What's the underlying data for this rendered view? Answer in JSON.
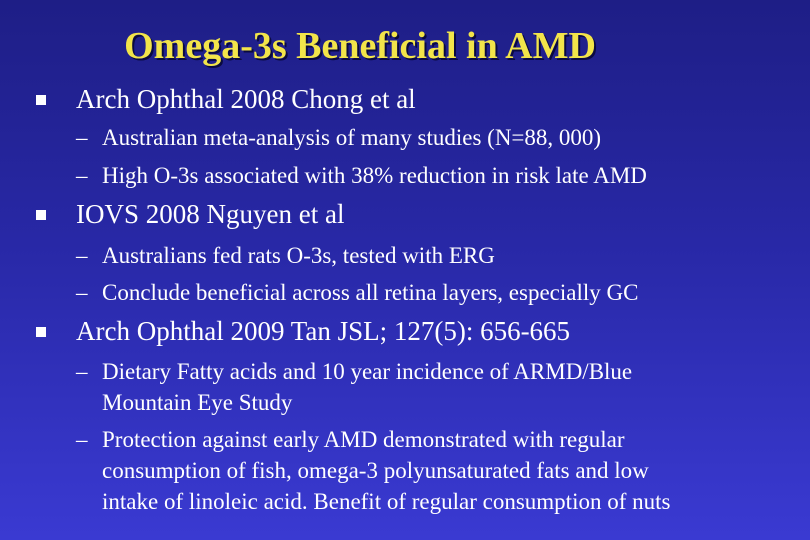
{
  "slide": {
    "title": "Omega-3s Beneficial in AMD",
    "bullets": [
      {
        "text": "Arch Ophthal 2008 Chong et al",
        "subs": [
          {
            "lines": [
              "Australian meta-analysis of many studies (N=88, 000)"
            ]
          },
          {
            "lines": [
              "High O-3s associated with 38% reduction in risk late AMD"
            ]
          }
        ]
      },
      {
        "text": "IOVS 2008 Nguyen et al",
        "subs": [
          {
            "lines": [
              "Australians fed rats O-3s, tested with ERG"
            ]
          },
          {
            "lines": [
              "Conclude beneficial across all retina layers, especially GC"
            ]
          }
        ]
      },
      {
        "text": "Arch Ophthal 2009 Tan JSL; 127(5): 656-665",
        "subs": [
          {
            "lines": [
              "Dietary Fatty acids and 10 year incidence of ARMD/Blue",
              "Mountain Eye Study"
            ]
          },
          {
            "lines": [
              "Protection against early AMD demonstrated with regular",
              "consumption of fish, omega-3 polyunsaturated fats and low",
              "intake of linoleic acid. Benefit of regular consumption of nuts"
            ]
          }
        ]
      }
    ],
    "dash_glyph": "–"
  },
  "colors": {
    "title": "#f2e44a",
    "background_top": "#1e1e86",
    "background_bottom": "#3a3ad2",
    "text": "#ffffff"
  }
}
